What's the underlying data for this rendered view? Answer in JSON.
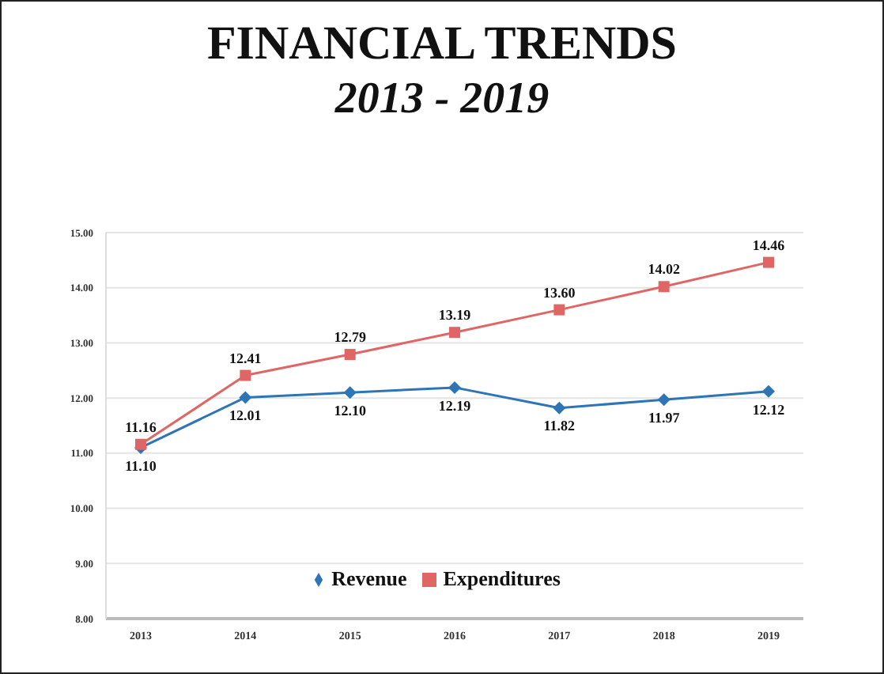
{
  "chart_data": {
    "type": "line",
    "title": "FINANCIAL TRENDS",
    "subtitle": "2013 - 2019",
    "categories": [
      "2013",
      "2014",
      "2015",
      "2016",
      "2017",
      "2018",
      "2019"
    ],
    "series": [
      {
        "name": "Revenue",
        "color": "#2e75b6",
        "marker": "diamond",
        "values": [
          11.1,
          12.01,
          12.1,
          12.19,
          11.82,
          11.97,
          12.12
        ],
        "value_labels": [
          "11.10",
          "12.01",
          "12.10",
          "12.19",
          "11.82",
          "11.97",
          "12.12"
        ]
      },
      {
        "name": "Expenditures",
        "color": "#e06666",
        "marker": "square",
        "values": [
          11.16,
          12.41,
          12.79,
          13.19,
          13.6,
          14.02,
          14.46
        ],
        "value_labels": [
          "11.16",
          "12.41",
          "12.79",
          "13.19",
          "13.60",
          "14.02",
          "14.46"
        ]
      }
    ],
    "ylim": [
      8,
      15
    ],
    "yticks": [
      {
        "value": 8,
        "label": "8.00"
      },
      {
        "value": 9,
        "label": "9.00"
      },
      {
        "value": 10,
        "label": "10.00"
      },
      {
        "value": 11,
        "label": "11.00"
      },
      {
        "value": 12,
        "label": "12.00"
      },
      {
        "value": 13,
        "label": "13.00"
      },
      {
        "value": 14,
        "label": "14.00"
      },
      {
        "value": 15,
        "label": "15.00"
      }
    ],
    "grid": "y",
    "legend": "bottom",
    "line_style": "solid"
  }
}
